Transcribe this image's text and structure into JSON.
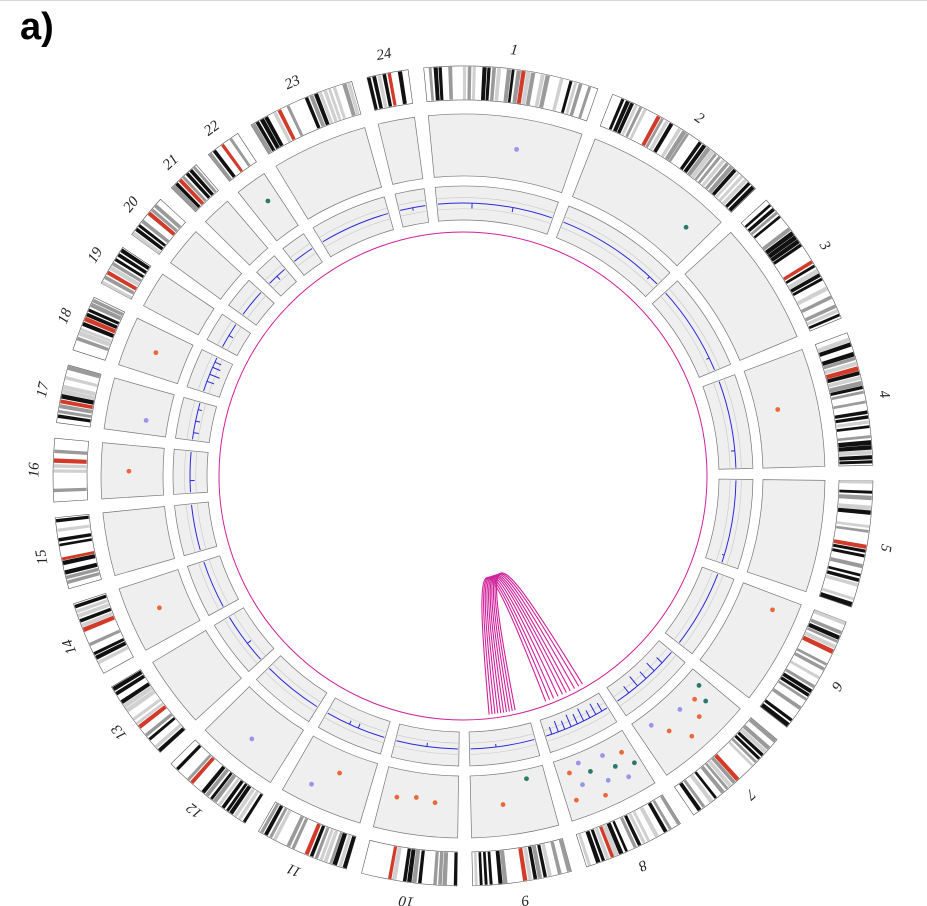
{
  "figure": {
    "panel_label": "a)",
    "chromosomes": [
      "1",
      "2",
      "3",
      "4",
      "5",
      "6",
      "7",
      "8",
      "9",
      "10",
      "11",
      "12",
      "13",
      "14",
      "15",
      "16",
      "17",
      "18",
      "19",
      "20",
      "21",
      "22",
      "23",
      "24"
    ]
  },
  "colors": {
    "band_black": "#111111",
    "band_grey": "#9a9a9a",
    "band_light": "#d0d0d0",
    "band_red": "#d23b2a",
    "track_bg": "#efefef",
    "track_border": "#777777",
    "dot_orange": "#e86a3a",
    "dot_violet": "#9b95e8",
    "dot_teal": "#2a7a6a",
    "line_blue": "#2a2ad8",
    "link_magenta": "#d0209a"
  },
  "chart_data": {
    "type": "circos",
    "chromosomes": [
      {
        "name": "1",
        "size": 249
      },
      {
        "name": "2",
        "size": 243
      },
      {
        "name": "3",
        "size": 198
      },
      {
        "name": "4",
        "size": 191
      },
      {
        "name": "5",
        "size": 181
      },
      {
        "name": "6",
        "size": 171
      },
      {
        "name": "7",
        "size": 159
      },
      {
        "name": "8",
        "size": 146
      },
      {
        "name": "9",
        "size": 141
      },
      {
        "name": "10",
        "size": 136
      },
      {
        "name": "11",
        "size": 135
      },
      {
        "name": "12",
        "size": 134
      },
      {
        "name": "13",
        "size": 115
      },
      {
        "name": "14",
        "size": 107
      },
      {
        "name": "15",
        "size": 102
      },
      {
        "name": "16",
        "size": 90
      },
      {
        "name": "17",
        "size": 83
      },
      {
        "name": "18",
        "size": 80
      },
      {
        "name": "19",
        "size": 59
      },
      {
        "name": "20",
        "size": 64
      },
      {
        "name": "21",
        "size": 48
      },
      {
        "name": "22",
        "size": 51
      },
      {
        "name": "23",
        "size": 155
      },
      {
        "name": "24",
        "size": 59
      }
    ],
    "dots": [
      {
        "chr": "1",
        "pos": 0.6,
        "level": 0.5,
        "color": "violet"
      },
      {
        "chr": "2",
        "pos": 0.85,
        "level": 0.55,
        "color": "teal"
      },
      {
        "chr": "4",
        "pos": 0.45,
        "level": 0.35,
        "color": "orange"
      },
      {
        "chr": "6",
        "pos": 0.15,
        "level": 0.6,
        "color": "orange"
      },
      {
        "chr": "7",
        "pos": 0.1,
        "level": 0.25,
        "color": "teal"
      },
      {
        "chr": "7",
        "pos": 0.18,
        "level": 0.5,
        "color": "teal"
      },
      {
        "chr": "7",
        "pos": 0.25,
        "level": 0.35,
        "color": "orange"
      },
      {
        "chr": "7",
        "pos": 0.35,
        "level": 0.6,
        "color": "orange"
      },
      {
        "chr": "7",
        "pos": 0.45,
        "level": 0.3,
        "color": "violet"
      },
      {
        "chr": "7",
        "pos": 0.55,
        "level": 0.75,
        "color": "orange"
      },
      {
        "chr": "7",
        "pos": 0.7,
        "level": 0.45,
        "color": "orange"
      },
      {
        "chr": "7",
        "pos": 0.82,
        "level": 0.2,
        "color": "violet"
      },
      {
        "chr": "8",
        "pos": 0.08,
        "level": 0.55,
        "color": "teal"
      },
      {
        "chr": "8",
        "pos": 0.15,
        "level": 0.3,
        "color": "orange"
      },
      {
        "chr": "8",
        "pos": 0.22,
        "level": 0.7,
        "color": "violet"
      },
      {
        "chr": "8",
        "pos": 0.3,
        "level": 0.45,
        "color": "teal"
      },
      {
        "chr": "8",
        "pos": 0.38,
        "level": 0.2,
        "color": "violet"
      },
      {
        "chr": "8",
        "pos": 0.45,
        "level": 0.6,
        "color": "violet"
      },
      {
        "chr": "8",
        "pos": 0.55,
        "level": 0.8,
        "color": "orange"
      },
      {
        "chr": "8",
        "pos": 0.6,
        "level": 0.35,
        "color": "teal"
      },
      {
        "chr": "8",
        "pos": 0.7,
        "level": 0.15,
        "color": "violet"
      },
      {
        "chr": "8",
        "pos": 0.75,
        "level": 0.5,
        "color": "violet"
      },
      {
        "chr": "8",
        "pos": 0.85,
        "level": 0.25,
        "color": "orange"
      },
      {
        "chr": "8",
        "pos": 0.88,
        "level": 0.7,
        "color": "orange"
      },
      {
        "chr": "9",
        "pos": 0.25,
        "level": 0.15,
        "color": "teal"
      },
      {
        "chr": "9",
        "pos": 0.6,
        "level": 0.5,
        "color": "orange"
      },
      {
        "chr": "10",
        "pos": 0.3,
        "level": 0.45,
        "color": "orange"
      },
      {
        "chr": "10",
        "pos": 0.55,
        "level": 0.4,
        "color": "orange"
      },
      {
        "chr": "10",
        "pos": 0.8,
        "level": 0.45,
        "color": "orange"
      },
      {
        "chr": "11",
        "pos": 0.45,
        "level": 0.35,
        "color": "orange"
      },
      {
        "chr": "11",
        "pos": 0.72,
        "level": 0.7,
        "color": "violet"
      },
      {
        "chr": "12",
        "pos": 0.5,
        "level": 0.6,
        "color": "violet"
      },
      {
        "chr": "14",
        "pos": 0.5,
        "level": 0.5,
        "color": "orange"
      },
      {
        "chr": "16",
        "pos": 0.5,
        "level": 0.55,
        "color": "orange"
      },
      {
        "chr": "17",
        "pos": 0.3,
        "level": 0.35,
        "color": "violet"
      },
      {
        "chr": "18",
        "pos": 0.5,
        "level": 0.5,
        "color": "orange"
      },
      {
        "chr": "22",
        "pos": 0.6,
        "level": 0.6,
        "color": "teal"
      }
    ],
    "line_spikes": [
      {
        "chr": "1",
        "pos": 0.3,
        "value": 0.35
      },
      {
        "chr": "1",
        "pos": 0.65,
        "value": 0.3
      },
      {
        "chr": "2",
        "pos": 0.9,
        "value": 0.2
      },
      {
        "chr": "3",
        "pos": 0.85,
        "value": 0.2
      },
      {
        "chr": "4",
        "pos": 0.8,
        "value": 0.25
      },
      {
        "chr": "5",
        "pos": 0.9,
        "value": 0.15
      },
      {
        "chr": "8",
        "pos": 0.1,
        "value": 0.6
      },
      {
        "chr": "8",
        "pos": 0.2,
        "value": 0.8
      },
      {
        "chr": "8",
        "pos": 0.3,
        "value": 0.55
      },
      {
        "chr": "8",
        "pos": 0.4,
        "value": 0.9
      },
      {
        "chr": "8",
        "pos": 0.5,
        "value": 0.7
      },
      {
        "chr": "8",
        "pos": 0.6,
        "value": 0.85
      },
      {
        "chr": "8",
        "pos": 0.7,
        "value": 0.6
      },
      {
        "chr": "8",
        "pos": 0.8,
        "value": 0.75
      },
      {
        "chr": "8",
        "pos": 0.9,
        "value": 0.5
      },
      {
        "chr": "7",
        "pos": 0.2,
        "value": 0.5
      },
      {
        "chr": "7",
        "pos": 0.35,
        "value": 0.7
      },
      {
        "chr": "7",
        "pos": 0.5,
        "value": 0.6
      },
      {
        "chr": "7",
        "pos": 0.65,
        "value": 0.8
      },
      {
        "chr": "7",
        "pos": 0.8,
        "value": 0.55
      },
      {
        "chr": "9",
        "pos": 0.6,
        "value": 0.2
      },
      {
        "chr": "10",
        "pos": 0.5,
        "value": 0.25
      },
      {
        "chr": "11",
        "pos": 0.45,
        "value": 0.3
      },
      {
        "chr": "11",
        "pos": 0.6,
        "value": 0.25
      },
      {
        "chr": "13",
        "pos": 0.4,
        "value": 0.3
      },
      {
        "chr": "16",
        "pos": 0.3,
        "value": 0.3
      },
      {
        "chr": "17",
        "pos": 0.2,
        "value": 0.35
      },
      {
        "chr": "17",
        "pos": 0.5,
        "value": 0.3
      },
      {
        "chr": "17",
        "pos": 0.8,
        "value": 0.25
      },
      {
        "chr": "18",
        "pos": 0.3,
        "value": 0.5
      },
      {
        "chr": "18",
        "pos": 0.5,
        "value": 0.7
      },
      {
        "chr": "18",
        "pos": 0.7,
        "value": 0.55
      },
      {
        "chr": "18",
        "pos": 0.85,
        "value": 0.45
      },
      {
        "chr": "19",
        "pos": 0.5,
        "value": 0.3
      },
      {
        "chr": "21",
        "pos": 0.5,
        "value": 0.3
      },
      {
        "chr": "24",
        "pos": 0.5,
        "value": 0.2
      }
    ],
    "links": [
      {
        "from": "8",
        "from_pos": 0.15,
        "to": "9",
        "to_pos": 0.2
      },
      {
        "from": "8",
        "from_pos": 0.22,
        "to": "9",
        "to_pos": 0.25
      },
      {
        "from": "8",
        "from_pos": 0.3,
        "to": "9",
        "to_pos": 0.3
      },
      {
        "from": "8",
        "from_pos": 0.38,
        "to": "9",
        "to_pos": 0.35
      },
      {
        "from": "8",
        "from_pos": 0.45,
        "to": "9",
        "to_pos": 0.4
      },
      {
        "from": "8",
        "from_pos": 0.52,
        "to": "9",
        "to_pos": 0.45
      },
      {
        "from": "8",
        "from_pos": 0.6,
        "to": "9",
        "to_pos": 0.5
      },
      {
        "from": "8",
        "from_pos": 0.68,
        "to": "9",
        "to_pos": 0.55
      },
      {
        "from": "8",
        "from_pos": 0.75,
        "to": "9",
        "to_pos": 0.6
      },
      {
        "from": "8",
        "from_pos": 0.82,
        "to": "9",
        "to_pos": 0.65
      }
    ]
  }
}
